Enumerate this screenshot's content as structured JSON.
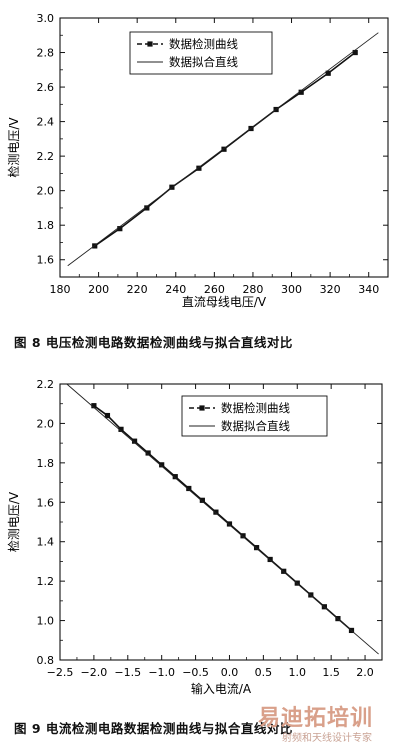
{
  "chart_data": [
    {
      "type": "line",
      "xlabel": "直流母线电压/V",
      "ylabel": "检测电压/V",
      "xlim": [
        180,
        350
      ],
      "ylim": [
        1.5,
        3.0
      ],
      "xticks": [
        180,
        200,
        220,
        240,
        260,
        280,
        300,
        320,
        340
      ],
      "yticks": [
        1.6,
        1.8,
        2.0,
        2.2,
        2.4,
        2.6,
        2.8,
        3.0
      ],
      "xtick_labels": [
        "180",
        "200",
        "220",
        "240",
        "260",
        "280",
        "300",
        "320",
        "340"
      ],
      "ytick_labels": [
        "1.6",
        "1.8",
        "2.0",
        "2.2",
        "2.4",
        "2.6",
        "2.8",
        "3.0"
      ],
      "legend_position": "top-left",
      "grid": false,
      "series": [
        {
          "name": "数据检测曲线",
          "style": "line-square-markers",
          "x": [
            198,
            211,
            225,
            238,
            252,
            265,
            279,
            292,
            305,
            319,
            333
          ],
          "y": [
            1.68,
            1.78,
            1.9,
            2.02,
            2.13,
            2.24,
            2.36,
            2.47,
            2.57,
            2.68,
            2.8
          ]
        },
        {
          "name": "数据拟合直线",
          "style": "thin-line",
          "x": [
            184,
            345
          ],
          "y": [
            1.565,
            2.915
          ]
        }
      ]
    },
    {
      "type": "line",
      "xlabel": "输入电流/A",
      "ylabel": "检测电压/V",
      "xlim": [
        -2.5,
        2.25
      ],
      "ylim": [
        0.8,
        2.2
      ],
      "xticks": [
        -2.5,
        -2.0,
        -1.5,
        -1.0,
        -0.5,
        0.0,
        0.5,
        1.0,
        1.5,
        2.0
      ],
      "yticks": [
        0.8,
        1.0,
        1.2,
        1.4,
        1.6,
        1.8,
        2.0,
        2.2
      ],
      "xtick_labels": [
        "−2.5",
        "−2.0",
        "−1.5",
        "−1.0",
        "−0.5",
        "0.0",
        "0.5",
        "1.0",
        "1.5",
        "2.0"
      ],
      "ytick_labels": [
        "0.8",
        "1.0",
        "1.2",
        "1.4",
        "1.6",
        "1.8",
        "2.0",
        "2.2"
      ],
      "legend_position": "top-right",
      "grid": false,
      "series": [
        {
          "name": "数据检测曲线",
          "style": "line-square-markers",
          "x": [
            -2.0,
            -1.8,
            -1.6,
            -1.4,
            -1.2,
            -1.0,
            -0.8,
            -0.6,
            -0.4,
            -0.2,
            0.0,
            0.2,
            0.4,
            0.6,
            0.8,
            1.0,
            1.2,
            1.4,
            1.6,
            1.8
          ],
          "y": [
            2.09,
            2.04,
            1.97,
            1.91,
            1.85,
            1.79,
            1.73,
            1.67,
            1.61,
            1.55,
            1.49,
            1.43,
            1.37,
            1.31,
            1.25,
            1.19,
            1.13,
            1.07,
            1.01,
            0.95
          ]
        },
        {
          "name": "数据拟合直线",
          "style": "thin-line",
          "x": [
            -2.4,
            2.2
          ],
          "y": [
            2.2,
            0.83
          ]
        }
      ]
    }
  ],
  "captions": {
    "fig8": "图 8    电压检测电路数据检测曲线与拟合直线对比",
    "fig9": "图 9    电流检测电路数据检测曲线与拟合直线对比"
  },
  "watermark": {
    "main": "易迪拓培训",
    "sub": "射频和天线设计专家"
  }
}
